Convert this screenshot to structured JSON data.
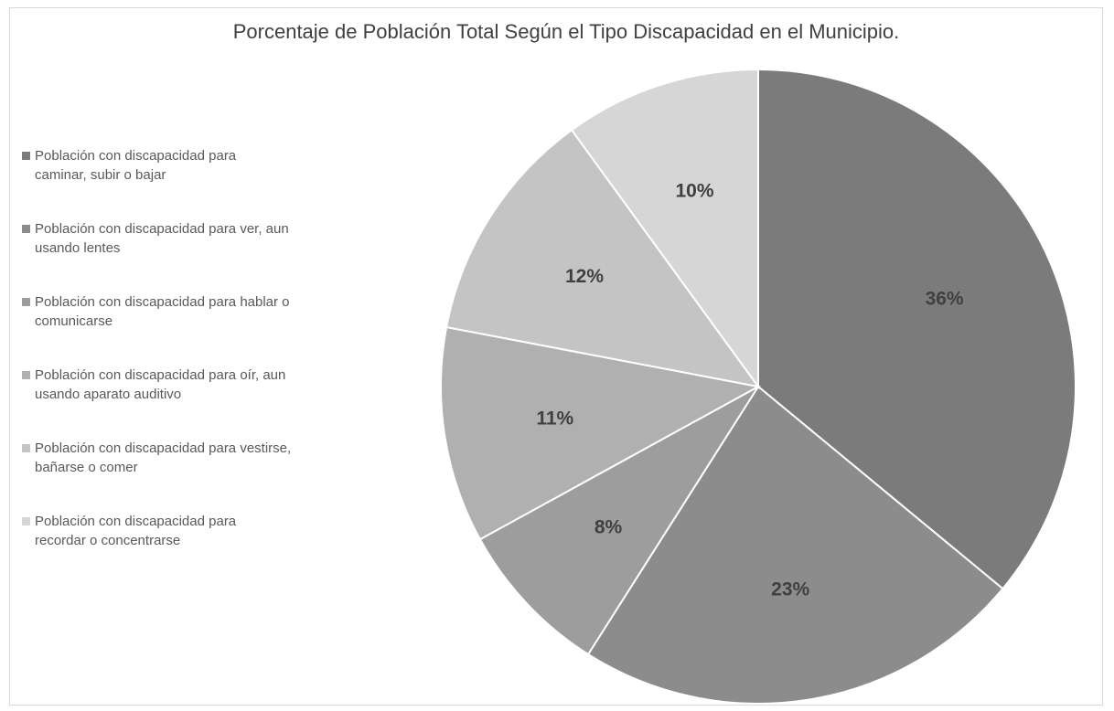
{
  "chart_data": {
    "type": "pie",
    "title": "Porcentaje de Población Total Según el Tipo Discapacidad en el Municipio.",
    "legend_position": "left",
    "start_angle_deg": 0,
    "direction": "clockwise",
    "slices": [
      {
        "name": "Población con discapacidad para caminar, subir o bajar",
        "name_lines": [
          "Población con discapacidad para",
          "caminar, subir o bajar"
        ],
        "value": 36,
        "label": "36%",
        "color": "#7b7b7b"
      },
      {
        "name": "Población con discapacidad para ver, aun usando lentes",
        "name_lines": [
          "Población con discapacidad para ver, aun",
          "usando lentes"
        ],
        "value": 23,
        "label": "23%",
        "color": "#8c8c8c"
      },
      {
        "name": "Población con discapacidad para hablar o comunicarse",
        "name_lines": [
          "Población con discapacidad para hablar o",
          "comunicarse"
        ],
        "value": 8,
        "label": "8%",
        "color": "#9d9d9d"
      },
      {
        "name": "Población con discapacidad para oír, aun usando aparato auditivo",
        "name_lines": [
          "Población con discapacidad para oír, aun",
          "usando aparato auditivo"
        ],
        "value": 11,
        "label": "11%",
        "color": "#b0b0b0"
      },
      {
        "name": "Población con discapacidad para vestirse, bañarse o comer",
        "name_lines": [
          "Población con discapacidad para vestirse,",
          "bañarse o comer"
        ],
        "value": 12,
        "label": "12%",
        "color": "#c4c4c4"
      },
      {
        "name": "Población con discapacidad para recordar o concentrarse",
        "name_lines": [
          "Población con discapacidad para",
          "recordar o concentrarse"
        ],
        "value": 10,
        "label": "10%",
        "color": "#d6d6d6"
      }
    ]
  }
}
